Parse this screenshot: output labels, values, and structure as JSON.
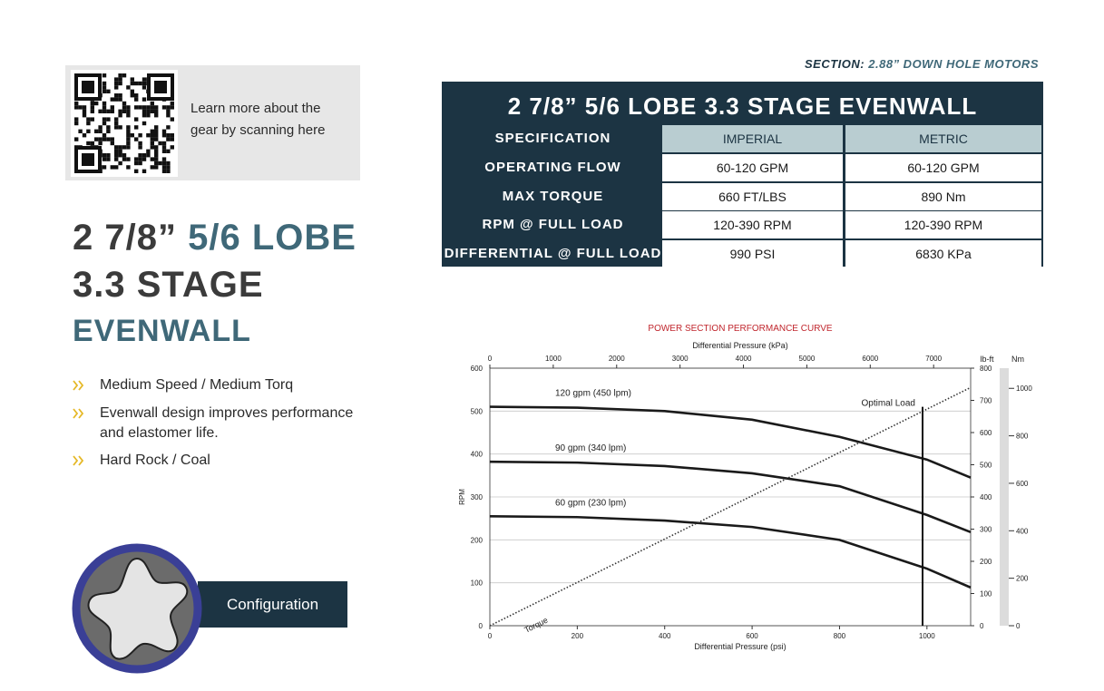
{
  "section": {
    "label": "SECTION:",
    "value": "2.88” DOWN HOLE MOTORS"
  },
  "qr_text": "Learn more about the gear by scanning here",
  "title": {
    "line1a": "2 7/8”",
    "line1b": "5/6 LOBE",
    "line2": "3.3 STAGE",
    "line3": "EVENWALL"
  },
  "features": [
    "Medium Speed / Medium Torq",
    "Evenwall design improves performance and elastomer life.",
    "Hard Rock / Coal"
  ],
  "configuration": "Configuration",
  "table": {
    "title": "2 7/8” 5/6 LOBE  3.3 STAGE EVENWALL",
    "header": [
      "SPECIFICATION",
      "IMPERIAL",
      "METRIC"
    ],
    "rows": [
      [
        "OPERATING FLOW",
        "60-120 GPM",
        "60-120 GPM"
      ],
      [
        "MAX TORQUE",
        "660 FT/LBS",
        "890 Nm"
      ],
      [
        "RPM @ FULL LOAD",
        "120-390 RPM",
        "120-390 RPM"
      ],
      [
        "DIFFERENTIAL @ FULL LOAD",
        "990 PSI",
        "6830 KPa"
      ]
    ]
  },
  "chart_data": {
    "type": "line",
    "title": "POWER SECTION PERFORMANCE CURVE",
    "xlabel": "Differential Pressure (psi)",
    "x2label": "Differential Pressure (kPa)",
    "ylabel": "RPM",
    "y2label": "lb-ft",
    "y3label": "Nm",
    "x": [
      0,
      200,
      400,
      600,
      800,
      1000,
      1100
    ],
    "xlim": [
      0,
      1100
    ],
    "xticks": [
      0,
      200,
      400,
      600,
      800,
      1000
    ],
    "x2lim": [
      0,
      7584
    ],
    "x2ticks": [
      0,
      1000,
      2000,
      3000,
      4000,
      5000,
      6000,
      7000
    ],
    "ylim": [
      0,
      600
    ],
    "yticks": [
      0,
      100,
      200,
      300,
      400,
      500,
      600
    ],
    "y2lim": [
      0,
      800
    ],
    "y2ticks": [
      0,
      100,
      200,
      300,
      400,
      500,
      600,
      700,
      800
    ],
    "y3lim": [
      0,
      1085
    ],
    "y3ticks": [
      0,
      200,
      400,
      600,
      800,
      1000
    ],
    "grid": true,
    "series": [
      {
        "name": "120 gpm (450 lpm)",
        "color": "#1a1a1a",
        "values": [
          510,
          508,
          500,
          480,
          440,
          387,
          345
        ]
      },
      {
        "name": "90 gpm (340 lpm)",
        "color": "#1a1a1a",
        "values": [
          382,
          380,
          372,
          355,
          325,
          258,
          218
        ]
      },
      {
        "name": "60 gpm (230 lpm)",
        "color": "#1a1a1a",
        "values": [
          255,
          253,
          245,
          230,
          200,
          133,
          89
        ]
      },
      {
        "name": "Torque",
        "color": "#333333",
        "axis": "y2",
        "style": "dotted",
        "x": [
          0,
          1100
        ],
        "values": [
          0,
          740
        ]
      }
    ],
    "optimal_load": {
      "label": "Optimal Load",
      "x": 990,
      "top": 510
    }
  }
}
